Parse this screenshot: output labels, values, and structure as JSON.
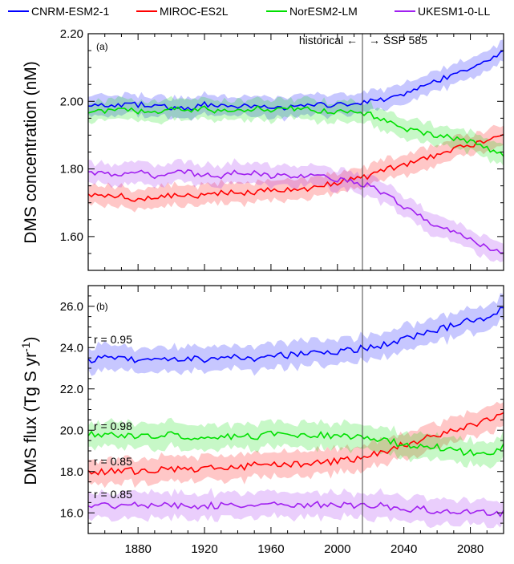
{
  "legend": [
    {
      "name": "CNRM-ESM2-1",
      "color": "#0000ff"
    },
    {
      "name": "MIROC-ES2L",
      "color": "#ff0000"
    },
    {
      "name": "NorESM2-LM",
      "color": "#00e000"
    },
    {
      "name": "UKESM1-0-LL",
      "color": "#a020f0"
    }
  ],
  "annotations": {
    "historical": "historical ←",
    "ssp": "→ SSP 585",
    "divider_year": 2015
  },
  "chart_data": [
    {
      "type": "line",
      "panel_label": "(a)",
      "ylabel": "DMS concentration (nM)",
      "xlim": [
        1850,
        2100
      ],
      "ylim": [
        1.5,
        2.2
      ],
      "yticks": [
        "1.60",
        "1.80",
        "2.00",
        "2.20"
      ],
      "xticks": [
        "1880",
        "1920",
        "1960",
        "2000",
        "2040",
        "2080"
      ],
      "x": [
        1850,
        1860,
        1870,
        1880,
        1890,
        1900,
        1910,
        1920,
        1930,
        1940,
        1950,
        1960,
        1970,
        1980,
        1990,
        2000,
        2010,
        2020,
        2030,
        2040,
        2050,
        2060,
        2070,
        2080,
        2090,
        2100
      ],
      "series": [
        {
          "name": "CNRM-ESM2-1",
          "values": [
            1.99,
            1.99,
            1.99,
            1.99,
            1.99,
            1.98,
            1.98,
            1.99,
            1.99,
            1.98,
            1.99,
            1.98,
            1.98,
            1.99,
            1.99,
            1.99,
            1.99,
            2.0,
            2.01,
            2.02,
            2.04,
            2.06,
            2.08,
            2.1,
            2.12,
            2.15
          ]
        },
        {
          "name": "MIROC-ES2L",
          "values": [
            1.72,
            1.72,
            1.72,
            1.71,
            1.72,
            1.72,
            1.72,
            1.72,
            1.73,
            1.73,
            1.73,
            1.74,
            1.74,
            1.74,
            1.75,
            1.76,
            1.77,
            1.78,
            1.8,
            1.81,
            1.83,
            1.84,
            1.86,
            1.87,
            1.88,
            1.9
          ]
        },
        {
          "name": "NorESM2-LM",
          "values": [
            1.97,
            1.97,
            1.98,
            1.97,
            1.97,
            1.98,
            1.97,
            1.98,
            1.97,
            1.97,
            1.98,
            1.97,
            1.98,
            1.98,
            1.97,
            1.97,
            1.97,
            1.96,
            1.94,
            1.92,
            1.91,
            1.9,
            1.89,
            1.88,
            1.86,
            1.84
          ]
        },
        {
          "name": "UKESM1-0-LL",
          "values": [
            1.79,
            1.79,
            1.78,
            1.79,
            1.78,
            1.79,
            1.79,
            1.78,
            1.78,
            1.79,
            1.79,
            1.78,
            1.78,
            1.78,
            1.78,
            1.77,
            1.76,
            1.75,
            1.72,
            1.69,
            1.66,
            1.63,
            1.61,
            1.59,
            1.57,
            1.55
          ]
        }
      ],
      "band_width": 0.03
    },
    {
      "type": "line",
      "panel_label": "(b)",
      "ylabel": "DMS flux (Tg S yr-1)",
      "ylabel_main": "DMS flux (Tg S yr",
      "ylabel_sup": "-1",
      "ylabel_end": ")",
      "xlim": [
        1850,
        2100
      ],
      "ylim": [
        15.0,
        27.0
      ],
      "yticks": [
        "16.0",
        "18.0",
        "20.0",
        "22.0",
        "24.0",
        "26.0"
      ],
      "xticks": [
        "1880",
        "1920",
        "1960",
        "2000",
        "2040",
        "2080"
      ],
      "x": [
        1850,
        1860,
        1870,
        1880,
        1890,
        1900,
        1910,
        1920,
        1930,
        1940,
        1950,
        1960,
        1970,
        1980,
        1990,
        2000,
        2010,
        2020,
        2030,
        2040,
        2050,
        2060,
        2070,
        2080,
        2090,
        2100
      ],
      "series": [
        {
          "name": "CNRM-ESM2-1",
          "values": [
            23.4,
            23.5,
            23.4,
            23.4,
            23.5,
            23.4,
            23.5,
            23.4,
            23.5,
            23.6,
            23.5,
            23.6,
            23.6,
            23.7,
            23.7,
            23.8,
            23.9,
            24.0,
            24.2,
            24.4,
            24.6,
            24.8,
            25.1,
            25.3,
            25.5,
            25.9
          ]
        },
        {
          "name": "MIROC-ES2L",
          "values": [
            18.0,
            18.0,
            18.1,
            18.0,
            18.1,
            18.1,
            18.1,
            18.2,
            18.2,
            18.2,
            18.3,
            18.3,
            18.3,
            18.4,
            18.4,
            18.5,
            18.6,
            18.8,
            19.0,
            19.3,
            19.5,
            19.8,
            20.0,
            20.2,
            20.5,
            20.8
          ]
        },
        {
          "name": "NorESM2-LM",
          "values": [
            19.8,
            19.7,
            19.8,
            19.7,
            19.7,
            19.8,
            19.7,
            19.6,
            19.7,
            19.7,
            19.7,
            19.8,
            19.7,
            19.7,
            19.8,
            19.7,
            19.7,
            19.6,
            19.5,
            19.3,
            19.3,
            19.2,
            19.0,
            18.9,
            18.8,
            19.2
          ]
        },
        {
          "name": "UKESM1-0-LL",
          "values": [
            16.4,
            16.4,
            16.3,
            16.4,
            16.4,
            16.3,
            16.4,
            16.3,
            16.4,
            16.3,
            16.3,
            16.4,
            16.3,
            16.4,
            16.4,
            16.4,
            16.3,
            16.4,
            16.3,
            16.2,
            16.2,
            16.1,
            16.1,
            16.0,
            16.0,
            16.0
          ]
        }
      ],
      "band_width": 0.6,
      "r_labels": [
        {
          "text": "r = 0.95",
          "value": 24.4
        },
        {
          "text": "r = 0.98",
          "value": 20.2
        },
        {
          "text": "r = 0.85",
          "value": 18.5
        },
        {
          "text": "r = 0.85",
          "value": 16.9
        }
      ]
    }
  ]
}
